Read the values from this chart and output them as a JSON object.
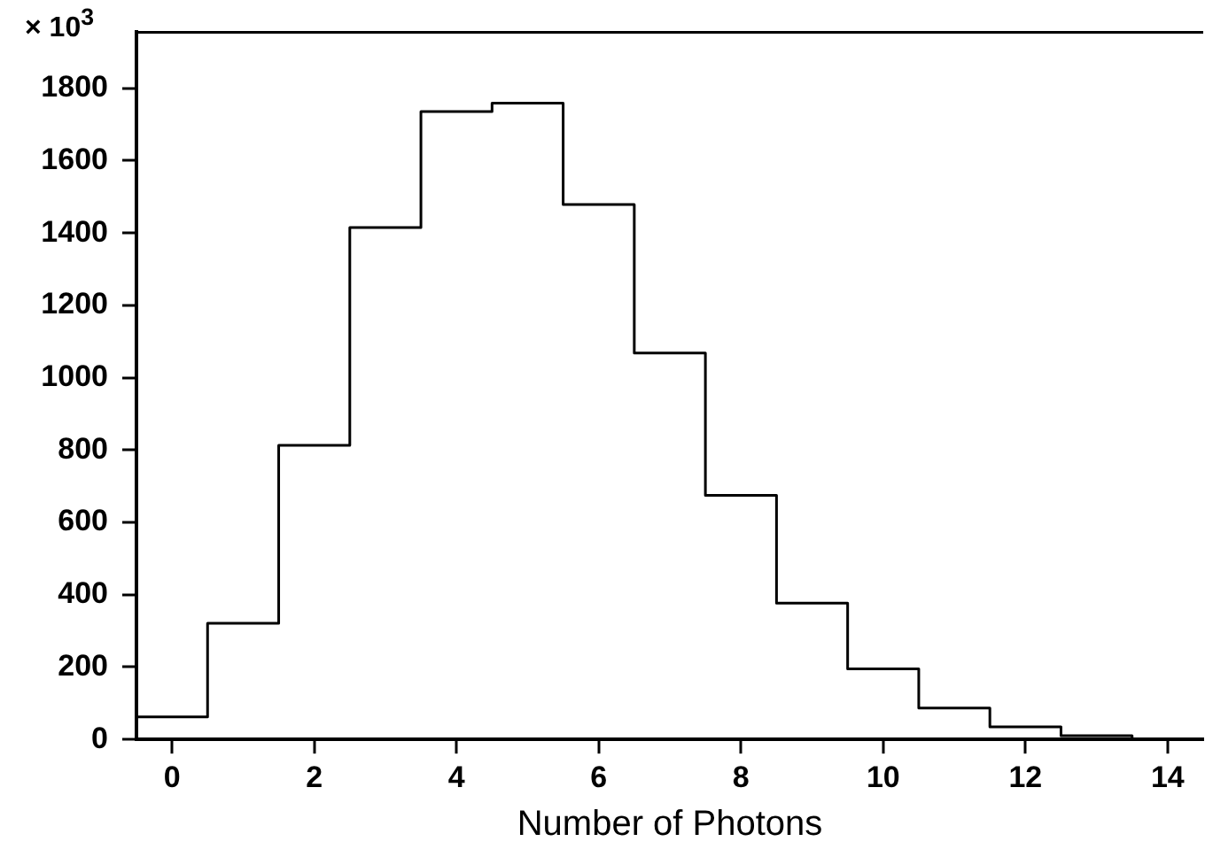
{
  "chart_data": {
    "type": "histogram",
    "xlabel": "Number of Photons",
    "ylabel": "× 10$^{3}$",
    "bins": [
      -0.5,
      0.5,
      1.5,
      2.5,
      3.5,
      4.5,
      5.5,
      6.5,
      7.5,
      8.5,
      9.5,
      10.5,
      11.5,
      12.5,
      13.5,
      14.5
    ],
    "values": [
      62,
      321,
      813,
      1415,
      1736,
      1759,
      1479,
      1068,
      675,
      377,
      195,
      87,
      35,
      10,
      2
    ],
    "color": "#000000",
    "xlim": [
      -0.5,
      14.5
    ],
    "xticks": [
      0,
      2,
      4,
      6,
      8,
      10,
      12,
      14
    ],
    "ylim": [
      0,
      1955
    ],
    "yticks": [
      0,
      200,
      400,
      600,
      800,
      1000,
      1200,
      1400,
      1600,
      1800
    ],
    "grid": false,
    "legend": false
  }
}
